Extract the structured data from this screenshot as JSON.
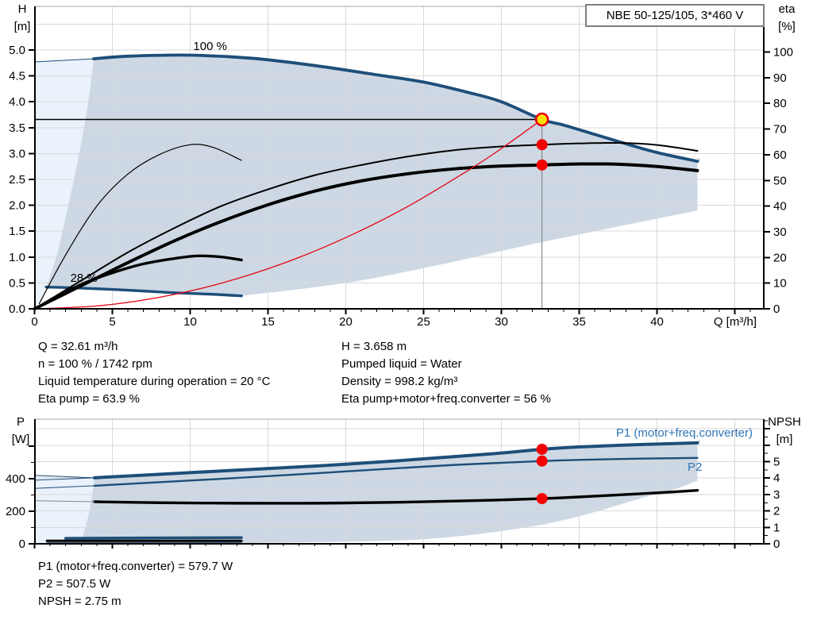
{
  "title_box": "NBE 50-125/105, 3*460 V",
  "colors": {
    "curve_blue": "#1d4e79",
    "label_blue": "#2e74b5",
    "system_red": "#e30613",
    "dot_red": "#f40000",
    "dot_yellow": "#ffdf00",
    "envelope_gray": "#cdd8e4",
    "envelope_pale": "#eaf2fb",
    "grid": "#d9d9d9",
    "axis": "#000000",
    "marker_line": "#777777"
  },
  "info1_left": [
    "Q = 32.61 m³/h",
    "n = 100 % / 1742 rpm",
    "Liquid temperature during operation = 20 °C",
    "Eta pump = 63.9 %"
  ],
  "info1_right": [
    "H = 3.658 m",
    "Pumped liquid = Water",
    "Density = 998.2 kg/m³",
    "Eta pump+motor+freq.converter = 56 %"
  ],
  "info2": [
    "P1 (motor+freq.converter) = 579.7 W",
    "P2 = 507.5 W",
    "NPSH = 2.75 m"
  ],
  "chart_data": [
    {
      "type": "line",
      "title": "QH / efficiency curves",
      "xlabel": "Q [m³/h]",
      "ylabel_left": [
        "H",
        "[m]"
      ],
      "ylabel_right": [
        "eta",
        "[%]"
      ],
      "xlim": [
        0,
        46.9
      ],
      "ylim_left": [
        0,
        5.8
      ],
      "ylim_right": [
        0,
        117
      ],
      "x_ticks": [
        0,
        5,
        10,
        15,
        20,
        25,
        30,
        35,
        40
      ],
      "y_ticks_left": [
        5.0,
        4.5,
        4.0,
        3.5,
        3.0,
        2.5,
        2.0,
        1.5,
        1.0,
        0.5,
        0.0
      ],
      "y_ticks_right": [
        100,
        90,
        80,
        70,
        60,
        50,
        40,
        30,
        20,
        10,
        0
      ],
      "labels": {
        "speed_max": "100 %",
        "speed_min": "28 %"
      },
      "series": [
        {
          "name": "speed100_qh",
          "axis": "H",
          "points": [
            [
              3.8,
              4.83
            ],
            [
              6,
              4.88
            ],
            [
              10,
              4.9
            ],
            [
              14,
              4.84
            ],
            [
              18,
              4.7
            ],
            [
              22,
              4.52
            ],
            [
              25,
              4.38
            ],
            [
              28,
              4.17
            ],
            [
              30,
              4.0
            ],
            [
              32.61,
              3.658
            ],
            [
              34,
              3.55
            ],
            [
              36,
              3.37
            ],
            [
              38,
              3.19
            ],
            [
              40,
              3.02
            ],
            [
              42.6,
              2.85
            ]
          ]
        },
        {
          "name": "speed28_qh",
          "axis": "H",
          "points": [
            [
              0.75,
              0.42
            ],
            [
              3,
              0.4
            ],
            [
              6,
              0.36
            ],
            [
              9,
              0.31
            ],
            [
              11.5,
              0.28
            ],
            [
              13.3,
              0.25
            ]
          ]
        },
        {
          "name": "min_flow_boundary",
          "axis": "H",
          "points": [
            [
              0.75,
              0.42
            ],
            [
              1.4,
              1.0
            ],
            [
              2.1,
              1.9
            ],
            [
              2.8,
              2.9
            ],
            [
              3.4,
              3.9
            ],
            [
              3.8,
              4.83
            ]
          ]
        },
        {
          "name": "max_flow_boundary",
          "axis": "H",
          "points": [
            [
              13.3,
              0.25
            ],
            [
              20,
              0.5
            ],
            [
              26,
              0.85
            ],
            [
              32,
              1.25
            ],
            [
              38,
              1.62
            ],
            [
              42.6,
              1.9
            ]
          ]
        },
        {
          "name": "pale_top_edge",
          "axis": "H",
          "points": [
            [
              0,
              4.77
            ],
            [
              3.8,
              4.83
            ]
          ]
        },
        {
          "name": "eta_pump_100",
          "axis": "eta",
          "points": [
            [
              0,
              0
            ],
            [
              3,
              11
            ],
            [
              6,
              22
            ],
            [
              9,
              31.5
            ],
            [
              12,
              40
            ],
            [
              15,
              46.5
            ],
            [
              18,
              52
            ],
            [
              21,
              56
            ],
            [
              24,
              59.3
            ],
            [
              27,
              61.8
            ],
            [
              30,
              63.2
            ],
            [
              32.61,
              63.9
            ],
            [
              35,
              64.4
            ],
            [
              37.5,
              64.6
            ],
            [
              40,
              63.8
            ],
            [
              42.6,
              61.5
            ]
          ]
        },
        {
          "name": "eta_total_100",
          "axis": "eta",
          "points": [
            [
              0,
              0
            ],
            [
              3,
              9
            ],
            [
              6,
              18
            ],
            [
              9,
              26.5
            ],
            [
              12,
              34
            ],
            [
              15,
              40.5
            ],
            [
              18,
              45.8
            ],
            [
              21,
              49.8
            ],
            [
              24,
              52.6
            ],
            [
              27,
              54.5
            ],
            [
              30,
              55.6
            ],
            [
              32.61,
              56
            ],
            [
              35,
              56.4
            ],
            [
              37.5,
              56.3
            ],
            [
              40,
              55.4
            ],
            [
              42.6,
              53.8
            ]
          ]
        },
        {
          "name": "eta_pump_28",
          "axis": "eta",
          "points": [
            [
              0.3,
              2
            ],
            [
              2,
              21
            ],
            [
              4,
              40
            ],
            [
              6,
              52.5
            ],
            [
              8,
              60
            ],
            [
              10,
              63.9
            ],
            [
              11.5,
              62.8
            ],
            [
              13.3,
              57.8
            ]
          ]
        },
        {
          "name": "eta_total_28",
          "axis": "eta",
          "points": [
            [
              0.6,
              2
            ],
            [
              3,
              9.5
            ],
            [
              5,
              14
            ],
            [
              7,
              17.5
            ],
            [
              9,
              19.6
            ],
            [
              10.5,
              20.6
            ],
            [
              12,
              20.2
            ],
            [
              13.3,
              19
            ]
          ]
        },
        {
          "name": "system_curve",
          "axis": "H",
          "points": [
            [
              0,
              0
            ],
            [
              4,
              0.055
            ],
            [
              8,
              0.22
            ],
            [
              12,
              0.495
            ],
            [
              16,
              0.88
            ],
            [
              20,
              1.376
            ],
            [
              24,
              1.98
            ],
            [
              28,
              2.7
            ],
            [
              30,
              3.096
            ],
            [
              32.61,
              3.658
            ]
          ]
        }
      ],
      "operating_point": {
        "q": 32.61,
        "h": 3.658,
        "eta_pump": 63.9,
        "eta_total": 56
      }
    },
    {
      "type": "line",
      "title": "Power / NPSH curves",
      "ylabel_left": [
        "P",
        "[W]"
      ],
      "ylabel_right": [
        "NPSH",
        "[m]"
      ],
      "xlim": [
        0,
        46.9
      ],
      "ylim_left": [
        0,
        760
      ],
      "ylim_right": [
        0,
        7.6
      ],
      "y_ticks_left": [
        400,
        200,
        0
      ],
      "y_ticks_right": [
        5,
        4,
        3,
        2,
        1,
        0
      ],
      "labels": {
        "p1": "P1 (motor+freq.converter)",
        "p2": "P2"
      },
      "series": [
        {
          "name": "p1_100",
          "axis": "P",
          "points": [
            [
              3.85,
              405
            ],
            [
              8,
              426
            ],
            [
              13,
              452
            ],
            [
              18,
              477
            ],
            [
              23,
              507
            ],
            [
              27,
              535
            ],
            [
              30,
              557
            ],
            [
              32.61,
              579.7
            ],
            [
              35,
              594
            ],
            [
              38,
              606
            ],
            [
              40,
              612
            ],
            [
              42.6,
              619
            ]
          ]
        },
        {
          "name": "p2_100",
          "axis": "P",
          "points": [
            [
              3.85,
              356
            ],
            [
              8,
              378
            ],
            [
              13,
              404
            ],
            [
              18,
              432
            ],
            [
              23,
              462
            ],
            [
              27,
              484
            ],
            [
              30,
              497
            ],
            [
              32.61,
              507.5
            ],
            [
              35,
              515
            ],
            [
              38,
              521
            ],
            [
              40,
              524
            ],
            [
              42.6,
              527
            ]
          ]
        },
        {
          "name": "npsh_100",
          "axis": "NPSH",
          "points": [
            [
              3.85,
              2.56
            ],
            [
              8,
              2.5
            ],
            [
              13,
              2.47
            ],
            [
              18,
              2.47
            ],
            [
              23,
              2.52
            ],
            [
              27,
              2.6
            ],
            [
              30,
              2.67
            ],
            [
              32.61,
              2.75
            ],
            [
              35,
              2.85
            ],
            [
              38,
              3.0
            ],
            [
              40,
              3.1
            ],
            [
              42.6,
              3.25
            ]
          ]
        },
        {
          "name": "p1_ext",
          "axis": "P",
          "points": [
            [
              0,
              390
            ],
            [
              3.85,
              405
            ]
          ]
        },
        {
          "name": "p2_ext",
          "axis": "P",
          "points": [
            [
              0,
              340
            ],
            [
              3.85,
              356
            ]
          ]
        },
        {
          "name": "npsh_ext",
          "axis": "NPSH",
          "points": [
            [
              0,
              2.62
            ],
            [
              3.85,
              2.56
            ]
          ]
        },
        {
          "name": "p1_28",
          "axis": "P",
          "points": [
            [
              2,
              34
            ],
            [
              13.3,
              38
            ]
          ]
        },
        {
          "name": "npsh_28",
          "axis": "NPSH",
          "points": [
            [
              0.8,
              0.18
            ],
            [
              13.3,
              0.18
            ]
          ]
        },
        {
          "name": "p2_28",
          "axis": "P",
          "points": [
            [
              0.8,
              6
            ],
            [
              13.3,
              6
            ]
          ]
        },
        {
          "name": "min_flow_boundary2",
          "axis": "P",
          "points": [
            [
              3.85,
              405
            ],
            [
              3.7,
              300
            ],
            [
              3.5,
              190
            ],
            [
              3.2,
              80
            ],
            [
              3.0,
              0
            ]
          ]
        },
        {
          "name": "max_flow_boundary2",
          "axis": "P",
          "points": [
            [
              3.0,
              0
            ],
            [
              10,
              3
            ],
            [
              16,
              8
            ],
            [
              21,
              15
            ],
            [
              25,
              28
            ],
            [
              29,
              65
            ],
            [
              33,
              125
            ],
            [
              36,
              195
            ],
            [
              39,
              280
            ],
            [
              41,
              330
            ],
            [
              42.6,
              388
            ]
          ]
        },
        {
          "name": "pale_top_edge2",
          "axis": "P",
          "points": [
            [
              0,
              420
            ],
            [
              3.85,
              405
            ]
          ]
        }
      ],
      "operating_point": {
        "q": 32.61,
        "p1": 579.7,
        "p2": 507.5,
        "npsh": 2.75
      }
    }
  ]
}
